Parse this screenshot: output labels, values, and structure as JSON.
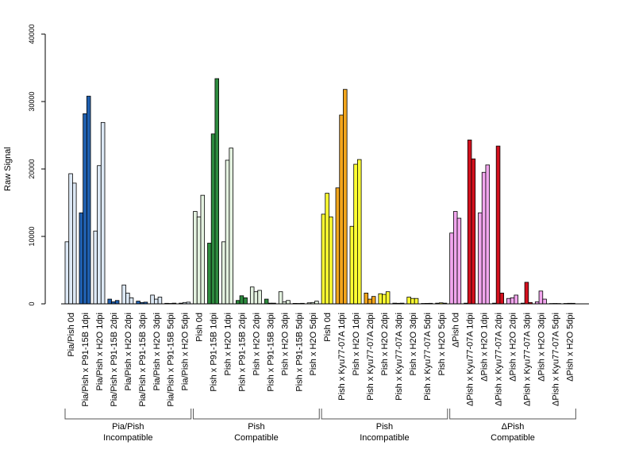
{
  "chart_data": {
    "type": "bar",
    "ylabel": "Raw Signal",
    "xlabel": "",
    "ylim": [
      0,
      40000
    ],
    "yticks": [
      0,
      10000,
      20000,
      30000,
      40000
    ],
    "grid": false,
    "legend": "none",
    "replicates_per_category": 3,
    "categories": [
      "Pia/Pish 0d",
      "Pia/Pish x P91-15B 1dpi",
      "Pia/Pish x H2O 1dpi",
      "Pia/Pish x P91-15B 2dpi",
      "Pia/Pish x H2O 2dpi",
      "Pia/Pish x P91-15B 3dpi",
      "Pia/Pish x H2O 3dpi",
      "Pia/Pish x P91-15B 5dpi",
      "Pia/Pish x H2O 5dpi",
      "Pish 0d",
      "Pish x P91-15B 1dpi",
      "Pish x H2O 1dpi",
      "Pish x P91-15B 2dpi",
      "Pish x H2O 2dpi",
      "Pish x P91-15B 3dpi",
      "Pish x H2O 3dpi",
      "Pish x P91-15B 5dpi",
      "Pish x H2O 5dpi",
      "Pish 0d",
      "Pish x Kyu77-07A 1dpi",
      "Pish x H2O 1dpi",
      "Pish x Kyu77-07A 2dpi",
      "Pish x H2O 2dpi",
      "Pish x Kyu77-07A 3dpi",
      "Pish x H2O 3dpi",
      "Pish x Kyu77-07A 5dpi",
      "Pish x H2O 5dpi",
      "ΔPish 0d",
      "ΔPish x Kyu77-07A 1dpi",
      "ΔPish x H2O 1dpi",
      "ΔPish x Kyu77-07A 2dpi",
      "ΔPish x H2O 2dpi",
      "ΔPish x Kyu77-07A 3dpi",
      "ΔPish x H2O 3dpi",
      "ΔPish x Kyu77-07A 5dpi",
      "ΔPish x H2O 5dpi"
    ],
    "values": [
      [
        9200,
        19300,
        17900
      ],
      [
        13500,
        28200,
        30800
      ],
      [
        10800,
        20500,
        26900
      ],
      [
        700,
        300,
        500
      ],
      [
        2800,
        1600,
        900
      ],
      [
        400,
        200,
        250
      ],
      [
        1300,
        700,
        1000
      ],
      [
        80,
        60,
        100
      ],
      [
        100,
        200,
        250
      ],
      [
        13700,
        12900,
        16100
      ],
      [
        9000,
        25200,
        33400
      ],
      [
        9200,
        21300,
        23100
      ],
      [
        500,
        1200,
        900
      ],
      [
        2500,
        1800,
        2000
      ],
      [
        700,
        100,
        100
      ],
      [
        1800,
        300,
        500
      ],
      [
        70,
        60,
        80
      ],
      [
        150,
        200,
        400
      ],
      [
        13300,
        16400,
        12900
      ],
      [
        17200,
        28000,
        31800
      ],
      [
        11500,
        20700,
        21400
      ],
      [
        1600,
        700,
        1100
      ],
      [
        1500,
        1400,
        1800
      ],
      [
        100,
        80,
        100
      ],
      [
        1000,
        800,
        800
      ],
      [
        60,
        70,
        80
      ],
      [
        100,
        150,
        100
      ],
      [
        10500,
        13700,
        12700
      ],
      [
        100,
        24300,
        21500
      ],
      [
        13500,
        19500,
        20600
      ],
      [
        100,
        23400,
        1600
      ],
      [
        800,
        900,
        1300
      ],
      [
        100,
        3200,
        200
      ],
      [
        300,
        1900,
        700
      ],
      [
        50,
        60,
        50
      ],
      [
        60,
        80,
        80
      ]
    ],
    "colors": {
      "pia_light": "#dce8f5",
      "pia_dark": "#2060b0",
      "pish_comp_light": "#e4f2e0",
      "pish_comp_dark": "#2d8a3e",
      "pish_incomp_light": "#ffff33",
      "pish_incomp_dark": "#f2a51c",
      "dpish_light": "#f2a6ee",
      "dpish_dark": "#d4101e",
      "outline": "#000000"
    },
    "category_color_keys": [
      "pia_light",
      "pia_dark",
      "pia_light",
      "pia_dark",
      "pia_light",
      "pia_dark",
      "pia_light",
      "pia_dark",
      "pia_light",
      "pish_comp_light",
      "pish_comp_dark",
      "pish_comp_light",
      "pish_comp_dark",
      "pish_comp_light",
      "pish_comp_dark",
      "pish_comp_light",
      "pish_comp_dark",
      "pish_comp_light",
      "pish_incomp_light",
      "pish_incomp_dark",
      "pish_incomp_light",
      "pish_incomp_dark",
      "pish_incomp_light",
      "pish_incomp_dark",
      "pish_incomp_light",
      "pish_incomp_dark",
      "pish_incomp_light",
      "dpish_light",
      "dpish_dark",
      "dpish_light",
      "dpish_dark",
      "dpish_light",
      "dpish_dark",
      "dpish_light",
      "dpish_dark",
      "dpish_light"
    ],
    "groups": [
      {
        "line1": "Pia/Pish",
        "line2": "Incompatible",
        "first": 0,
        "last": 8
      },
      {
        "line1": "Pish",
        "line2": "Compatible",
        "first": 9,
        "last": 17
      },
      {
        "line1": "Pish",
        "line2": "Incompatible",
        "first": 18,
        "last": 26
      },
      {
        "line1": "ΔPish",
        "line2": "Compatible",
        "first": 27,
        "last": 35
      }
    ]
  }
}
